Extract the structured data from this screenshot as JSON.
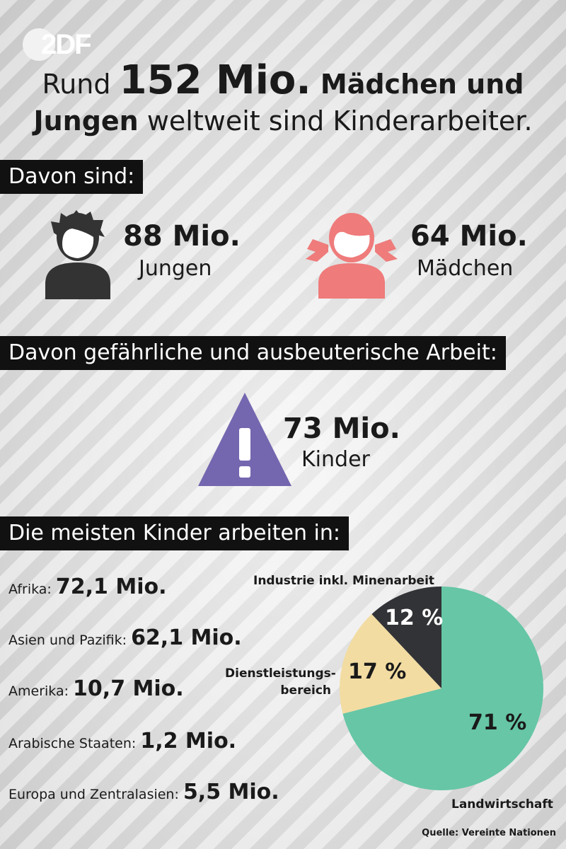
{
  "brand": {
    "logo_text": "2DF"
  },
  "headline": {
    "part1": "Rund ",
    "big": "152 Mio.",
    "part2": " Mädchen und",
    "part3": "Jungen",
    "part4": " weltweit sind Kinderarbeiter."
  },
  "section1": {
    "title": "Davon sind:",
    "boys": {
      "value": "88 Mio.",
      "label": "Jungen",
      "color": "#333333",
      "icon": "boy-icon"
    },
    "girls": {
      "value": "64 Mio.",
      "label": "Mädchen",
      "color": "#ef7b7b",
      "icon": "girl-icon"
    }
  },
  "section2": {
    "title": "Davon gefährliche und ausbeuterische Arbeit:",
    "value": "73 Mio.",
    "label": "Kinder",
    "color": "#7566b0",
    "icon": "warning-icon"
  },
  "section3": {
    "title": "Die meisten Kinder arbeiten in:",
    "regions": [
      {
        "name": "Afrika:",
        "value": "72,1 Mio."
      },
      {
        "name": "Asien und Pazifik:",
        "value": "62,1 Mio."
      },
      {
        "name": "Amerika:",
        "value": "10,7 Mio."
      },
      {
        "name": "Arabische Staaten:",
        "value": "1,2 Mio."
      },
      {
        "name": "Europa und Zentralasien:",
        "value": "5,5 Mio."
      }
    ]
  },
  "chart_data": {
    "type": "pie",
    "slices": [
      {
        "label": "Landwirtschaft",
        "value": 71,
        "value_label": "71 %",
        "color": "#66c6a6"
      },
      {
        "label": "Dienstleistungs-\nbereich",
        "value": 17,
        "value_label": "17 %",
        "color": "#f2dca2"
      },
      {
        "label": "Industrie inkl. Minenarbeit",
        "value": 12,
        "value_label": "12 %",
        "color": "#323336"
      }
    ]
  },
  "source": "Quelle: Vereinte Nationen"
}
